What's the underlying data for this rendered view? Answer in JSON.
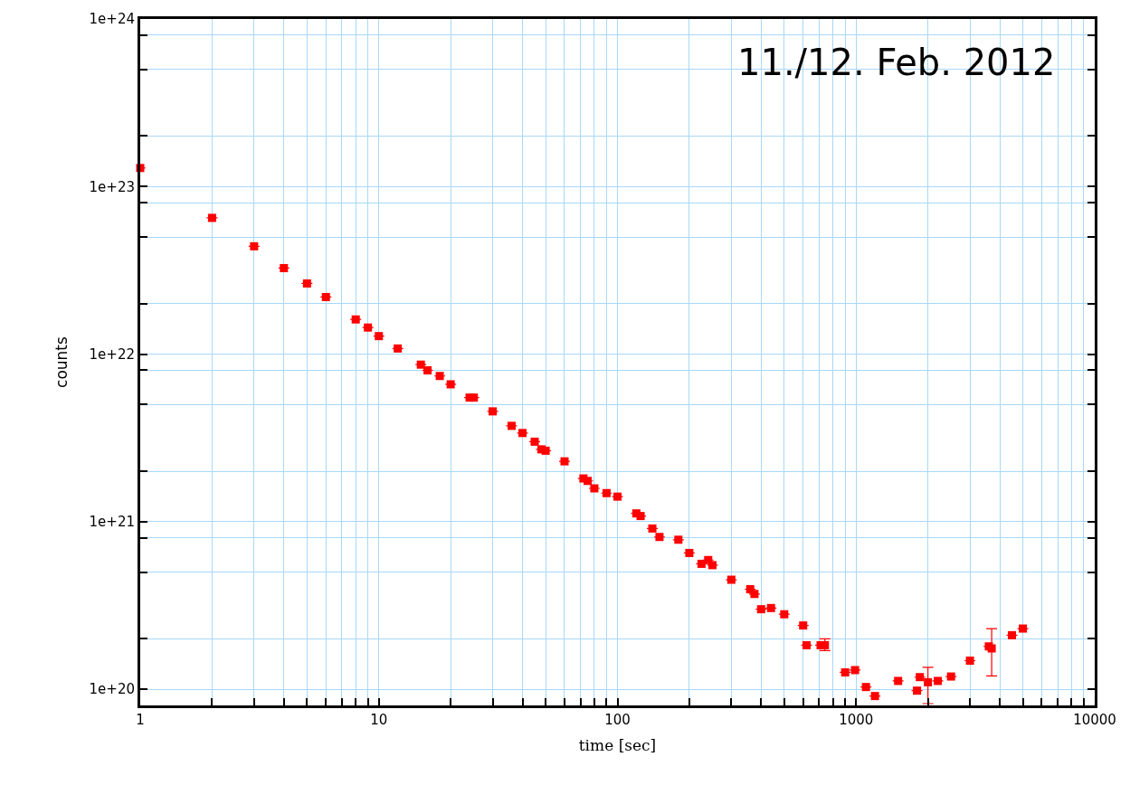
{
  "chart_data": {
    "type": "scatter",
    "xlabel": "time [sec]",
    "ylabel": "counts",
    "annotations": [
      "11./12. Feb. 2012"
    ],
    "log": "xy",
    "grid": true,
    "marker": "square",
    "legend": false,
    "x": [
      1,
      2,
      3,
      4,
      5,
      6,
      8,
      9,
      10,
      12,
      15,
      16,
      18,
      20,
      24,
      25,
      30,
      36,
      40,
      45,
      48,
      50,
      60,
      72,
      75,
      80,
      90,
      100,
      120,
      125,
      140,
      150,
      180,
      200,
      225,
      240,
      250,
      300,
      360,
      375,
      400,
      440,
      500,
      600,
      620,
      710,
      740,
      900,
      990,
      1100,
      1200,
      1500,
      1800,
      1850,
      2000,
      2200,
      2500,
      3000,
      3600,
      3700,
      4500,
      5000
    ],
    "series": [
      {
        "color": "#ff0000",
        "values": [
          1.29e+23,
          6.5e+22,
          4.4e+22,
          3.26e+22,
          2.64e+22,
          2.19e+22,
          1.61e+22,
          1.44e+22,
          1.28e+22,
          1.08e+22,
          8.65e+21,
          8e+21,
          7.4e+21,
          6.6e+21,
          5.5e+21,
          5.5e+21,
          4.55e+21,
          3.73e+21,
          3.38e+21,
          3e+21,
          2.7e+21,
          2.65e+21,
          2.29e+21,
          1.81e+21,
          1.75e+21,
          1.58e+21,
          1.48e+21,
          1.41e+21,
          1.12e+21,
          1.08e+21,
          9.1e+20,
          8.1e+20,
          7.8e+20,
          6.5e+20,
          5.6e+20,
          5.9e+20,
          5.5e+20,
          4.5e+20,
          3.95e+20,
          3.7e+20,
          3e+20,
          3.05e+20,
          2.8e+20,
          2.4e+20,
          1.83e+20,
          1.83e+20,
          1.83e+20,
          1.26e+20,
          1.3e+20,
          1.03e+20,
          9.1e+19,
          1.12e+20,
          9.8e+19,
          1.18e+20,
          1.1e+20,
          1.12e+20,
          1.19e+20,
          1.48e+20,
          1.8e+20,
          1.75e+20,
          2.1e+20,
          2.3e+20
        ],
        "errors": [
          null,
          null,
          null,
          null,
          null,
          null,
          null,
          null,
          null,
          null,
          null,
          null,
          null,
          null,
          null,
          null,
          null,
          null,
          null,
          null,
          null,
          null,
          null,
          null,
          null,
          null,
          null,
          null,
          null,
          null,
          null,
          null,
          null,
          null,
          null,
          null,
          null,
          null,
          null,
          null,
          null,
          null,
          null,
          null,
          null,
          null,
          [
            1.7e+20,
            2e+20
          ],
          null,
          null,
          null,
          null,
          null,
          null,
          null,
          [
            8.2e+19,
            1.35e+20
          ],
          null,
          null,
          null,
          null,
          [
            1.2e+20,
            2.3e+20
          ],
          null,
          null
        ]
      }
    ],
    "xlim": [
      1,
      10000
    ],
    "xticks": [
      {
        "value": 1,
        "label": "1"
      },
      {
        "value": 2,
        "label": null
      },
      {
        "value": 3,
        "label": null
      },
      {
        "value": 4,
        "label": null
      },
      {
        "value": 5,
        "label": null
      },
      {
        "value": 6,
        "label": null
      },
      {
        "value": 7,
        "label": null
      },
      {
        "value": 8,
        "label": null
      },
      {
        "value": 9,
        "label": null
      },
      {
        "value": 10,
        "label": "10"
      },
      {
        "value": 20,
        "label": null
      },
      {
        "value": 30,
        "label": null
      },
      {
        "value": 40,
        "label": null
      },
      {
        "value": 50,
        "label": null
      },
      {
        "value": 60,
        "label": null
      },
      {
        "value": 70,
        "label": null
      },
      {
        "value": 80,
        "label": null
      },
      {
        "value": 90,
        "label": null
      },
      {
        "value": 100,
        "label": "100"
      },
      {
        "value": 200,
        "label": null
      },
      {
        "value": 300,
        "label": null
      },
      {
        "value": 400,
        "label": null
      },
      {
        "value": 500,
        "label": null
      },
      {
        "value": 600,
        "label": null
      },
      {
        "value": 700,
        "label": null
      },
      {
        "value": 800,
        "label": null
      },
      {
        "value": 900,
        "label": null
      },
      {
        "value": 1000,
        "label": "1000"
      },
      {
        "value": 2000,
        "label": null
      },
      {
        "value": 3000,
        "label": null
      },
      {
        "value": 4000,
        "label": null
      },
      {
        "value": 5000,
        "label": null
      },
      {
        "value": 6000,
        "label": null
      },
      {
        "value": 7000,
        "label": null
      },
      {
        "value": 8000,
        "label": null
      },
      {
        "value": 9000,
        "label": null
      },
      {
        "value": 10000,
        "label": "10000"
      }
    ],
    "ylim": [
      8e+19,
      1e+24
    ],
    "yticks": [
      {
        "value": 1e+20,
        "label": "1e+20"
      },
      {
        "value": 2e+20,
        "label": null
      },
      {
        "value": 5e+20,
        "label": null
      },
      {
        "value": 8e+20,
        "label": null
      },
      {
        "value": 1e+21,
        "label": "1e+21"
      },
      {
        "value": 2e+21,
        "label": null
      },
      {
        "value": 5e+21,
        "label": null
      },
      {
        "value": 8e+21,
        "label": null
      },
      {
        "value": 1e+22,
        "label": "1e+22"
      },
      {
        "value": 2e+22,
        "label": null
      },
      {
        "value": 5e+22,
        "label": null
      },
      {
        "value": 8e+22,
        "label": null
      },
      {
        "value": 1e+23,
        "label": "1e+23"
      },
      {
        "value": 2e+23,
        "label": null
      },
      {
        "value": 5e+23,
        "label": null
      },
      {
        "value": 8e+23,
        "label": null
      },
      {
        "value": 1e+24,
        "label": "1e+24"
      }
    ]
  }
}
